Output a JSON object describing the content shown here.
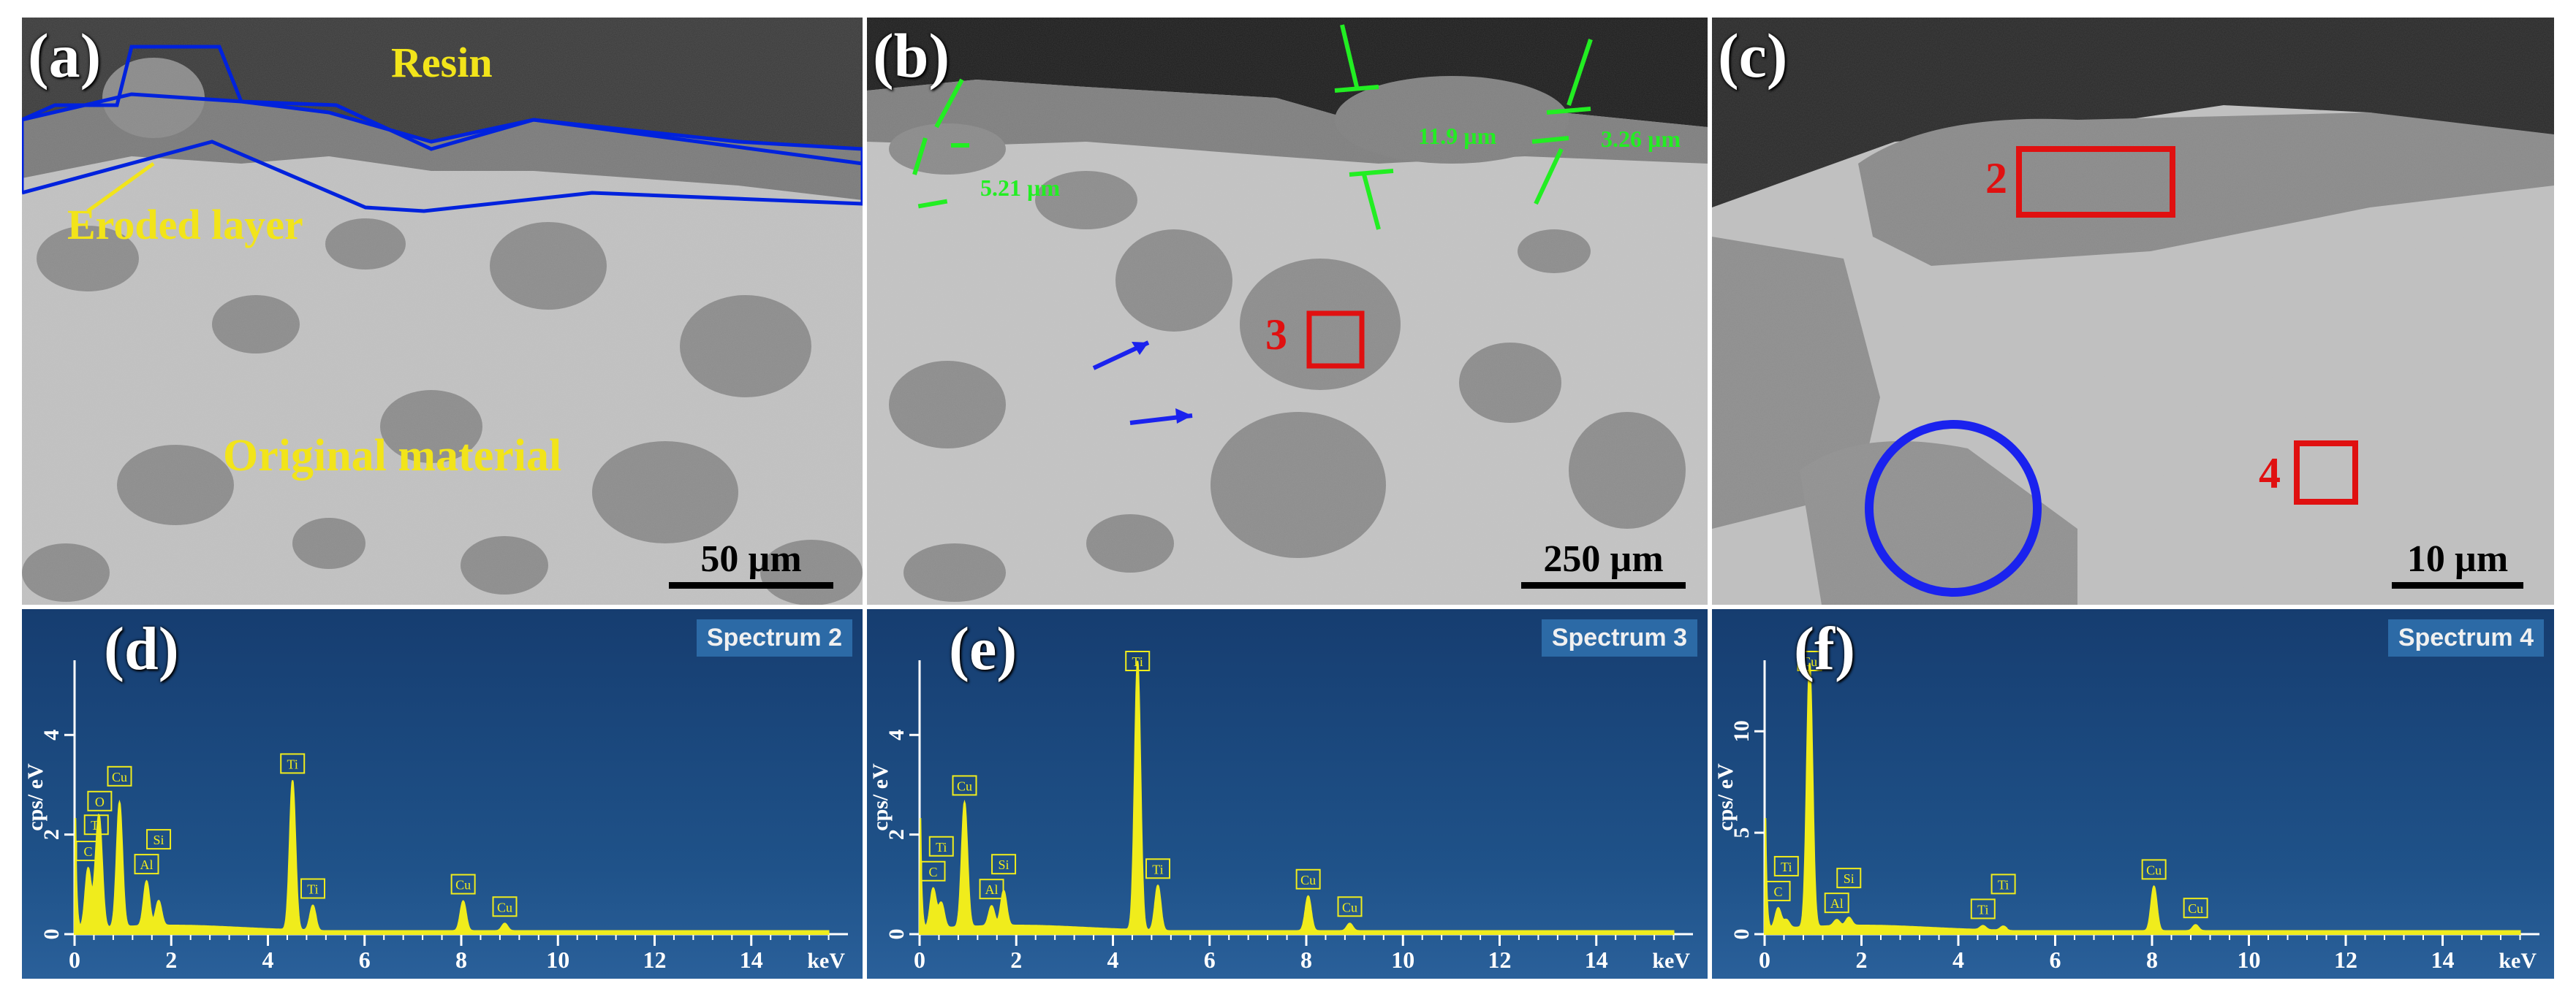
{
  "panels": {
    "a": {
      "label": "(a)",
      "resin": "Resin",
      "eroded": "Eroded layer",
      "original": "Original material",
      "scale": "50 µm"
    },
    "b": {
      "label": "(b)",
      "m1": "5.21 µm",
      "m2": "11.9 µm",
      "m3": "3.26 µm",
      "box": "3",
      "scale": "250 µm"
    },
    "c": {
      "label": "(c)",
      "box2": "2",
      "box4": "4",
      "scale": "10 µm"
    }
  },
  "spectra": [
    {
      "label": "(d)",
      "title": "Spectrum 2"
    },
    {
      "label": "(e)",
      "title": "Spectrum 3"
    },
    {
      "label": "(f)",
      "title": "Spectrum 4"
    }
  ],
  "chart_data": [
    {
      "type": "line",
      "title": "Spectrum 2",
      "xlabel": "keV",
      "ylabel": "cps/ eV",
      "xlim": [
        0,
        16
      ],
      "ylim": [
        0,
        5.5
      ],
      "xticks": [
        "0",
        "2",
        "4",
        "6",
        "8",
        "10",
        "12",
        "14"
      ],
      "yticks": [
        "0",
        "2",
        "4"
      ],
      "peaks": [
        {
          "label": "C",
          "x": 0.28,
          "y": 1.2
        },
        {
          "label": "Ti",
          "x": 0.45,
          "y": 0.8
        },
        {
          "label": "O",
          "x": 0.52,
          "y": 1.8
        },
        {
          "label": "Cu",
          "x": 0.93,
          "y": 2.5
        },
        {
          "label": "Al",
          "x": 1.49,
          "y": 0.9
        },
        {
          "label": "Si",
          "x": 1.74,
          "y": 0.5
        },
        {
          "label": "Ti",
          "x": 4.51,
          "y": 3.0
        },
        {
          "label": "Ti",
          "x": 4.93,
          "y": 0.5
        },
        {
          "label": "Cu",
          "x": 8.04,
          "y": 0.6
        },
        {
          "label": "Cu",
          "x": 8.9,
          "y": 0.15
        }
      ]
    },
    {
      "type": "line",
      "title": "Spectrum 3",
      "xlabel": "keV",
      "ylabel": "cps/ eV",
      "xlim": [
        0,
        16
      ],
      "ylim": [
        0,
        5.5
      ],
      "xticks": [
        "0",
        "2",
        "4",
        "6",
        "8",
        "10",
        "12",
        "14"
      ],
      "yticks": [
        "0",
        "2",
        "4"
      ],
      "peaks": [
        {
          "label": "C",
          "x": 0.28,
          "y": 0.8
        },
        {
          "label": "Ti",
          "x": 0.45,
          "y": 0.5
        },
        {
          "label": "Cu",
          "x": 0.93,
          "y": 2.5
        },
        {
          "label": "Al",
          "x": 1.49,
          "y": 0.4
        },
        {
          "label": "Si",
          "x": 1.74,
          "y": 0.7
        },
        {
          "label": "Ti",
          "x": 4.51,
          "y": 5.4
        },
        {
          "label": "Ti",
          "x": 4.93,
          "y": 0.9
        },
        {
          "label": "Cu",
          "x": 8.04,
          "y": 0.7
        },
        {
          "label": "Cu",
          "x": 8.9,
          "y": 0.15
        }
      ]
    },
    {
      "type": "line",
      "title": "Spectrum 4",
      "xlabel": "keV",
      "ylabel": "cps/ eV",
      "xlim": [
        0,
        16
      ],
      "ylim": [
        0,
        13.5
      ],
      "xticks": [
        "0",
        "2",
        "4",
        "6",
        "8",
        "10",
        "12",
        "14"
      ],
      "yticks": [
        "0",
        "5",
        "10"
      ],
      "peaks": [
        {
          "label": "C",
          "x": 0.28,
          "y": 1.0
        },
        {
          "label": "Ti",
          "x": 0.45,
          "y": 0.4
        },
        {
          "label": "Cu",
          "x": 0.93,
          "y": 13.0
        },
        {
          "label": "Al",
          "x": 1.49,
          "y": 0.3
        },
        {
          "label": "Si",
          "x": 1.74,
          "y": 0.4
        },
        {
          "label": "Ti",
          "x": 4.51,
          "y": 0.2
        },
        {
          "label": "Ti",
          "x": 4.93,
          "y": 0.2
        },
        {
          "label": "Cu",
          "x": 8.04,
          "y": 2.2
        },
        {
          "label": "Cu",
          "x": 8.9,
          "y": 0.3
        }
      ]
    }
  ]
}
